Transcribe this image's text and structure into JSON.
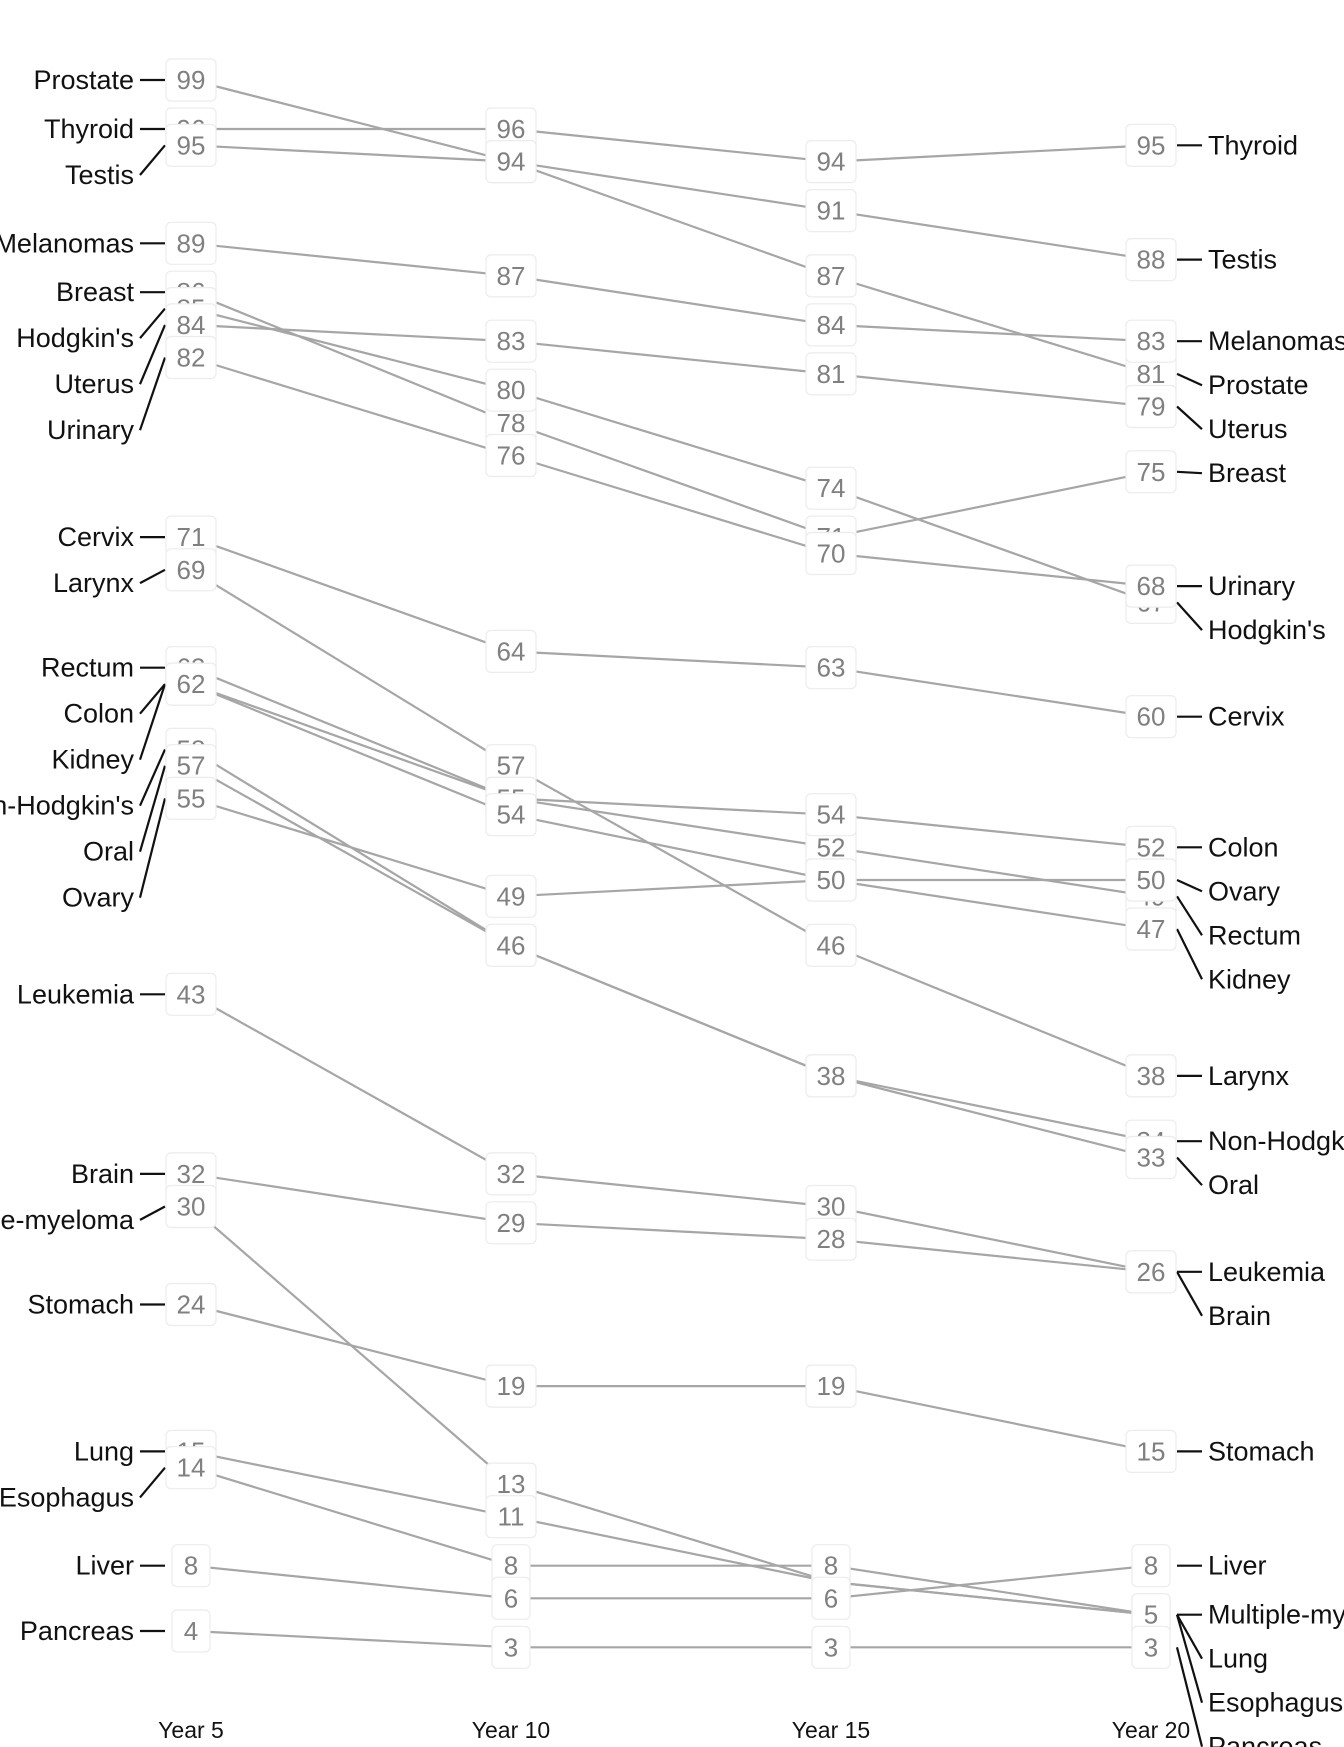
{
  "chart_data": {
    "type": "line",
    "variant": "slopegraph",
    "title": "",
    "xlabel": "",
    "ylabel": "",
    "grid": false,
    "legend": "none",
    "categories": [
      "Year 5",
      "Year 10",
      "Year 15",
      "Year 20"
    ],
    "series": [
      {
        "name": "Prostate",
        "values": [
          99,
          94,
          87,
          81
        ]
      },
      {
        "name": "Thyroid",
        "values": [
          96,
          96,
          94,
          95
        ]
      },
      {
        "name": "Testis",
        "values": [
          95,
          94,
          91,
          88
        ]
      },
      {
        "name": "Melanomas",
        "values": [
          89,
          87,
          84,
          83
        ]
      },
      {
        "name": "Breast",
        "values": [
          86,
          78,
          71,
          75
        ]
      },
      {
        "name": "Hodgkin's",
        "values": [
          85,
          80,
          74,
          67
        ]
      },
      {
        "name": "Uterus",
        "values": [
          84,
          83,
          81,
          79
        ]
      },
      {
        "name": "Urinary",
        "values": [
          82,
          76,
          70,
          68
        ]
      },
      {
        "name": "Cervix",
        "values": [
          71,
          64,
          63,
          60
        ]
      },
      {
        "name": "Larynx",
        "values": [
          69,
          57,
          46,
          38
        ]
      },
      {
        "name": "Rectum",
        "values": [
          63,
          55,
          52,
          49
        ]
      },
      {
        "name": "Colon",
        "values": [
          62,
          55,
          54,
          52
        ]
      },
      {
        "name": "Kidney",
        "values": [
          62,
          54,
          50,
          47
        ]
      },
      {
        "name": "Non-Hodgkin's",
        "values": [
          58,
          46,
          38,
          34
        ]
      },
      {
        "name": "Oral",
        "values": [
          57,
          46,
          38,
          33
        ]
      },
      {
        "name": "Ovary",
        "values": [
          55,
          49,
          50,
          50
        ]
      },
      {
        "name": "Leukemia",
        "values": [
          43,
          32,
          30,
          26
        ]
      },
      {
        "name": "Brain",
        "values": [
          32,
          29,
          28,
          26
        ]
      },
      {
        "name": "Multiple-myeloma",
        "values": [
          30,
          13,
          7,
          5
        ]
      },
      {
        "name": "Stomach",
        "values": [
          24,
          19,
          19,
          15
        ]
      },
      {
        "name": "Lung",
        "values": [
          15,
          11,
          7,
          5
        ]
      },
      {
        "name": "Esophagus",
        "values": [
          14,
          8,
          8,
          5
        ]
      },
      {
        "name": "Liver",
        "values": [
          8,
          6,
          6,
          8
        ]
      },
      {
        "name": "Pancreas",
        "values": [
          4,
          3,
          3,
          3
        ]
      }
    ]
  }
}
